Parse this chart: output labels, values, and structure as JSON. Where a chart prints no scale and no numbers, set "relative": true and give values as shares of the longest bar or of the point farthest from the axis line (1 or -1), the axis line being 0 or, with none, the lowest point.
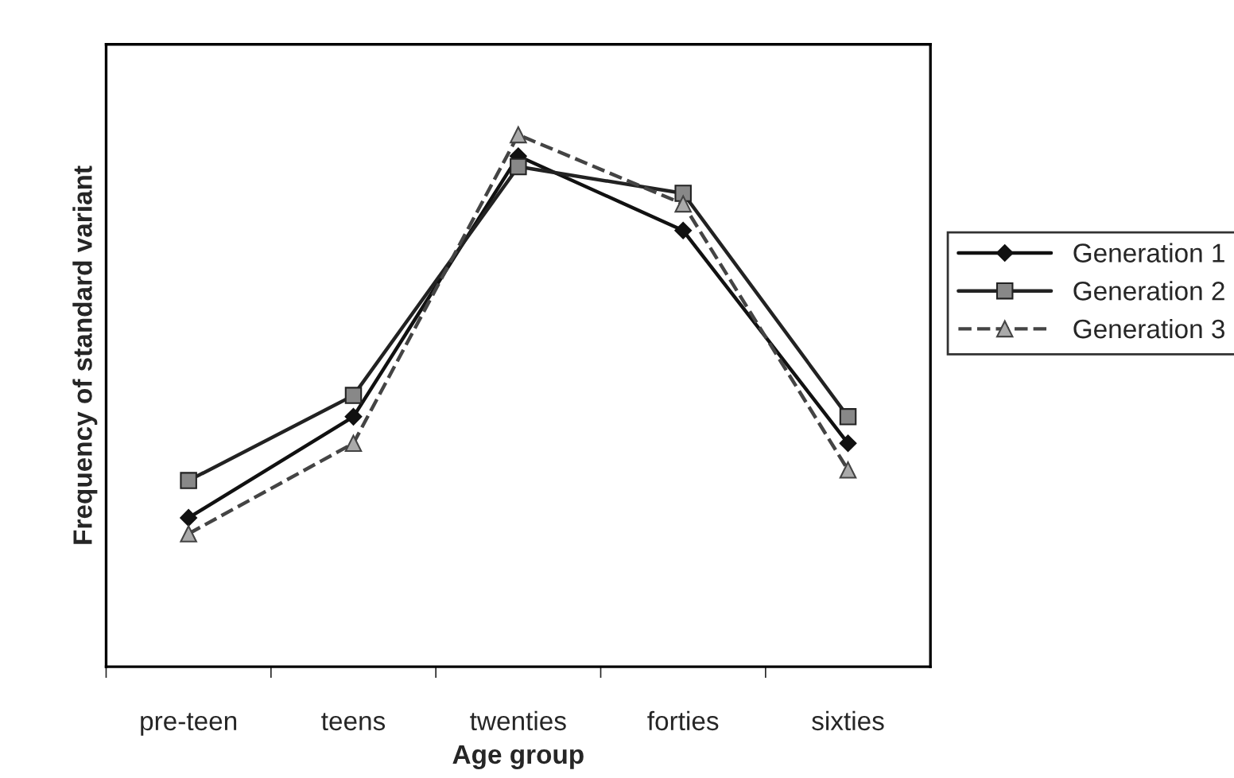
{
  "chart_data": {
    "type": "line",
    "relative": true,
    "xlabel": "Age group",
    "ylabel": "Frequency of standard variant",
    "categories": [
      "pre-teen",
      "teens",
      "twenties",
      "forties",
      "sixties"
    ],
    "series": [
      {
        "name": "Generation 1",
        "color": "#111111",
        "marker": "diamond",
        "line_style": "solid",
        "values": [
          0.28,
          0.47,
          0.96,
          0.82,
          0.42
        ]
      },
      {
        "name": "Generation 2",
        "color": "#222222",
        "marker": "square",
        "line_style": "solid",
        "values": [
          0.35,
          0.51,
          0.94,
          0.89,
          0.47
        ]
      },
      {
        "name": "Generation 3",
        "color": "#444444",
        "marker": "triangle",
        "line_style": "dashed",
        "values": [
          0.25,
          0.42,
          1.0,
          0.87,
          0.37
        ]
      }
    ],
    "legend": "right",
    "grid": false
  }
}
